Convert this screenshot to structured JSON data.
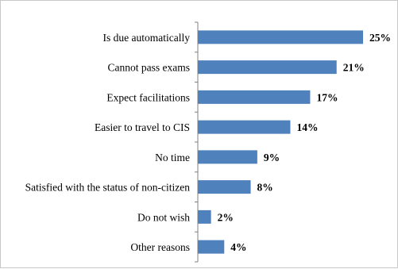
{
  "chart_data": {
    "type": "bar",
    "orientation": "horizontal",
    "categories": [
      "Is due automatically",
      "Cannot pass exams",
      "Expect facilitations",
      "Easier to travel to CIS",
      "No time",
      "Satisfied with the status of non-citizen",
      "Do not wish",
      "Other reasons"
    ],
    "values": [
      25,
      21,
      17,
      14,
      9,
      8,
      2,
      4
    ],
    "value_labels": [
      "25%",
      "21%",
      "17%",
      "14%",
      "9%",
      "8%",
      "2%",
      "4%"
    ],
    "xlim": [
      0,
      25
    ],
    "grid": false,
    "legend": "none",
    "colors": {
      "bar": "#4f81bd",
      "axis": "#808080"
    }
  }
}
